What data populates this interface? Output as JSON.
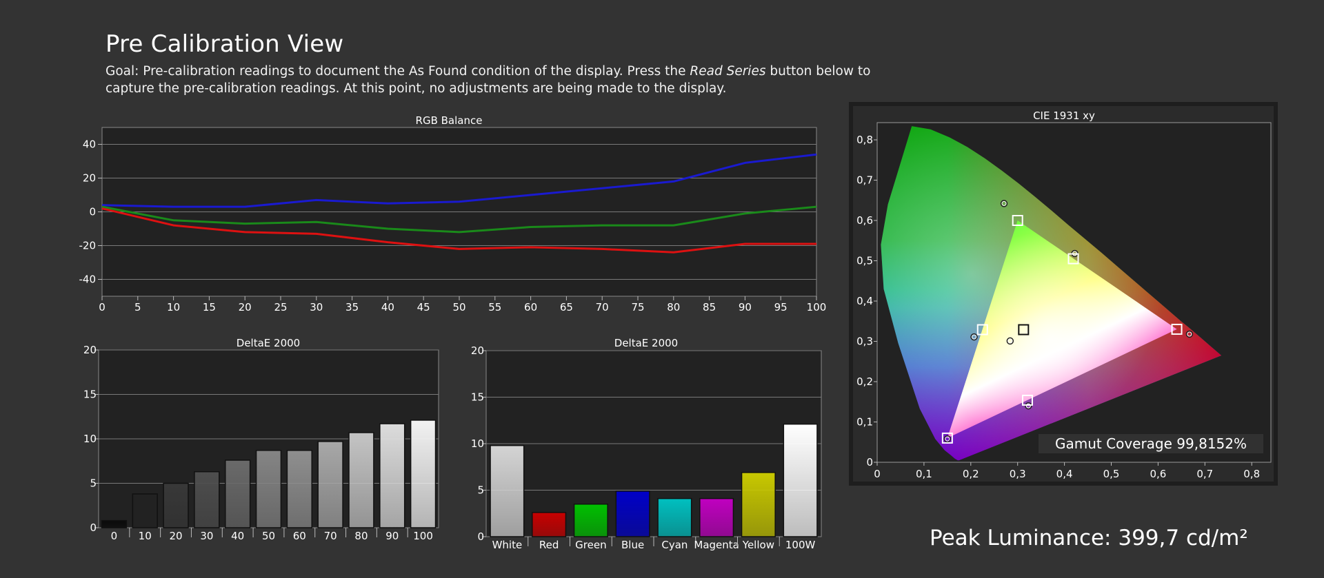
{
  "page": {
    "title": "Pre Calibration View",
    "goal_prefix": "Goal: Pre-calibration readings to document the As Found condition of the display. Press the ",
    "goal_italic": "Read Series",
    "goal_suffix": " button below to capture the pre-calibration readings. At this point, no adjustments are being made to the display.",
    "peak_luminance": "Peak Luminance: 399,7 cd/m²"
  },
  "colors": {
    "background": "#333333",
    "plot_bg": "#222222",
    "red": "#dd1111",
    "green": "#1a8a1a",
    "blue": "#1a1ad0"
  },
  "chart_data": [
    {
      "type": "line",
      "title": "RGB Balance",
      "xlabel": "",
      "ylabel": "",
      "x": [
        0,
        10,
        20,
        30,
        40,
        50,
        60,
        70,
        80,
        90,
        100
      ],
      "x_ticks": [
        0,
        5,
        10,
        15,
        20,
        25,
        30,
        35,
        40,
        45,
        50,
        55,
        60,
        65,
        70,
        75,
        80,
        85,
        90,
        95,
        100
      ],
      "xlim": [
        0,
        100
      ],
      "y_ticks": [
        40,
        20,
        0,
        -20,
        -40
      ],
      "ylim": [
        -50,
        50
      ],
      "grid": true,
      "series": [
        {
          "color": "#1a1ad0",
          "values": [
            4,
            3,
            3,
            7,
            5,
            6,
            10,
            14,
            18,
            29,
            34
          ]
        },
        {
          "color": "#1a8a1a",
          "values": [
            3,
            -5,
            -7,
            -6,
            -10,
            -12,
            -9,
            -8,
            -8,
            -1,
            3
          ]
        },
        {
          "color": "#dd1111",
          "values": [
            2,
            -8,
            -12,
            -13,
            -18,
            -22,
            -21,
            -22,
            -24,
            -19,
            -19
          ]
        }
      ]
    },
    {
      "type": "bar",
      "title": "DeltaE 2000",
      "categories": [
        "0",
        "10",
        "20",
        "30",
        "40",
        "50",
        "60",
        "70",
        "80",
        "90",
        "100"
      ],
      "values": [
        0.8,
        3.8,
        5.0,
        6.3,
        7.6,
        8.7,
        8.7,
        9.7,
        10.7,
        11.7,
        12.1
      ],
      "bar_colors": [
        "#0a0a0a",
        "#222222",
        "#383838",
        "#4e4e4e",
        "#6a6a6a",
        "#858585",
        "#8f8f8f",
        "#a8a8a8",
        "#c4c4c4",
        "#dcdcdc",
        "#f2f2f2"
      ],
      "y_ticks": [
        20,
        15,
        10,
        5,
        0
      ],
      "ylim": [
        0,
        20
      ],
      "grid": true
    },
    {
      "type": "bar",
      "title": "DeltaE 2000",
      "categories": [
        "White",
        "Red",
        "Green",
        "Blue",
        "Cyan",
        "Magenta",
        "Yellow",
        "100W"
      ],
      "values": [
        9.8,
        2.6,
        3.5,
        4.9,
        4.1,
        4.1,
        6.9,
        12.1
      ],
      "bar_colors": [
        "#d4d4d4",
        "#c80000",
        "#00c000",
        "#0000c8",
        "#00c0c0",
        "#c000c0",
        "#c8c800",
        "#ffffff"
      ],
      "y_ticks": [
        20,
        15,
        10,
        5,
        0
      ],
      "ylim": [
        0,
        20
      ],
      "grid": true
    },
    {
      "type": "scatter",
      "title": "CIE 1931 xy",
      "xlim": [
        0,
        0.85
      ],
      "ylim": [
        0,
        0.85
      ],
      "x_ticks": [
        "0",
        "0,1",
        "0,2",
        "0,3",
        "0,4",
        "0,5",
        "0,6",
        "0,7",
        "0,8"
      ],
      "y_ticks": [
        "0,8",
        "0,7",
        "0,6",
        "0,5",
        "0,4",
        "0,3",
        "0,2",
        "0,1",
        "0"
      ],
      "targets": [
        {
          "x": 0.64,
          "y": 0.33
        },
        {
          "x": 0.3,
          "y": 0.6
        },
        {
          "x": 0.15,
          "y": 0.06
        },
        {
          "x": 0.225,
          "y": 0.329
        },
        {
          "x": 0.321,
          "y": 0.154
        },
        {
          "x": 0.419,
          "y": 0.505
        },
        {
          "x": 0.3127,
          "y": 0.329
        }
      ],
      "measured": [
        {
          "x": 0.667,
          "y": 0.318
        },
        {
          "x": 0.271,
          "y": 0.642
        },
        {
          "x": 0.15,
          "y": 0.058
        },
        {
          "x": 0.207,
          "y": 0.311
        },
        {
          "x": 0.323,
          "y": 0.14
        },
        {
          "x": 0.422,
          "y": 0.518
        },
        {
          "x": 0.284,
          "y": 0.301
        }
      ],
      "annotation": "Gamut Coverage 99,8152%"
    }
  ]
}
